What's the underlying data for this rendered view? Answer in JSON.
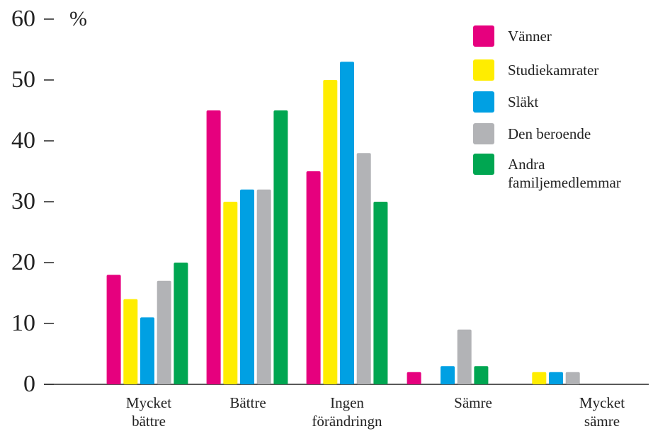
{
  "chart_data": {
    "type": "bar",
    "y_label": "%",
    "categories": [
      "Mycket bättre",
      "Bättre",
      "Ingen förändringn",
      "Sämre",
      "Mycket sämre"
    ],
    "series": [
      {
        "name": "Vänner",
        "color": "#e6007e",
        "values": [
          18,
          45,
          35,
          2,
          0
        ]
      },
      {
        "name": "Studiekamrater",
        "color": "#ffed00",
        "values": [
          14,
          30,
          50,
          0,
          2
        ]
      },
      {
        "name": "Släkt",
        "color": "#00a0e3",
        "values": [
          11,
          32,
          53,
          3,
          2
        ]
      },
      {
        "name": "Den beroende",
        "color": "#b2b3b6",
        "values": [
          17,
          32,
          38,
          9,
          2
        ]
      },
      {
        "name": "Andra familjemedlemmar",
        "color": "#00a651",
        "values": [
          20,
          45,
          30,
          3,
          0
        ]
      }
    ],
    "ylim": [
      0,
      60
    ],
    "yticks": [
      0,
      10,
      20,
      30,
      40,
      50,
      60
    ],
    "legend": "top-right"
  }
}
